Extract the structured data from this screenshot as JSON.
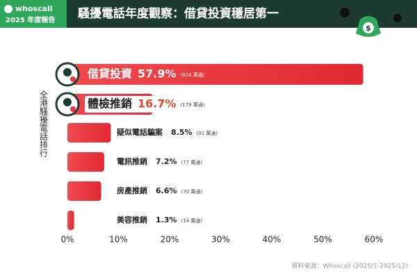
{
  "header": {
    "brand": "whoscall",
    "report": "2025 年度報告"
  },
  "chart_data": {
    "type": "hbar",
    "title": "騷擾電話年度觀察：借貸投資穩居第一",
    "y_label": "全港騷擾電話排行",
    "categories": [
      "借貸投資",
      "體檢推銷",
      "疑似電話騙案",
      "電訊推銷",
      "房產推銷",
      "美容推銷"
    ],
    "values": [
      57.9,
      16.7,
      8.5,
      7.2,
      6.6,
      1.3
    ],
    "value_labels": [
      "57.9%",
      "16.7%",
      "8.5%",
      "7.2%",
      "6.6%",
      "1.3%"
    ],
    "call_counts": [
      "(624 萬通)",
      "(179 萬通)",
      "(91 萬通)",
      "(77 萬通)",
      "(70 萬通)",
      "(14 萬通)"
    ],
    "color": "#e8353b",
    "xlim": [
      0,
      60
    ],
    "xticks": [
      {
        "value": 0,
        "label": "0%"
      },
      {
        "value": 10,
        "label": "10%"
      },
      {
        "value": 20,
        "label": "20%"
      },
      {
        "value": 30,
        "label": "30%"
      },
      {
        "value": 40,
        "label": "40%"
      },
      {
        "value": 50,
        "label": "50%"
      },
      {
        "value": 60,
        "label": "60%"
      }
    ],
    "grid": false,
    "source": "資料來源：Whoscall (2025/1-2025/12)"
  }
}
